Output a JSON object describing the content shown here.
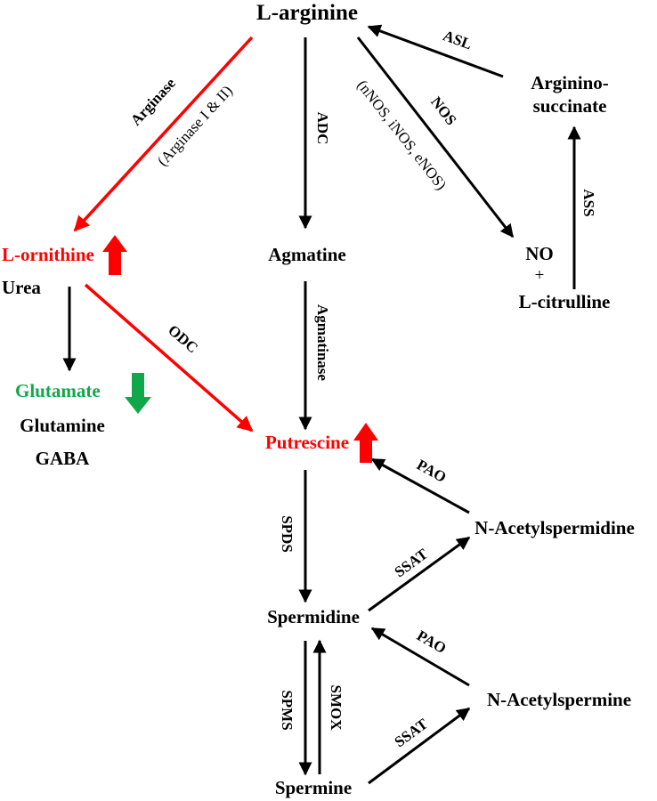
{
  "colors": {
    "black": "#000000",
    "red": "#ff0000",
    "green": "#11a84b"
  },
  "nodes": {
    "l_arginine": "L-arginine",
    "argininosuccinate_1": "Arginino-",
    "argininosuccinate_2": "succinate",
    "l_ornithine": "L-ornithine",
    "urea": "Urea",
    "agmatine": "Agmatine",
    "no": "NO",
    "plus": "+",
    "l_citrulline": "L-citrulline",
    "glutamate": "Glutamate",
    "glutamine": "Glutamine",
    "gaba": "GABA",
    "putrescine": "Putrescine",
    "n_acetylspermidine": "N-Acetylspermidine",
    "spermidine": "Spermidine",
    "n_acetylspermine": "N-Acetylspermine",
    "spermine": "Spermine"
  },
  "enzymes": {
    "asl": "ASL",
    "arginase": "Arginase",
    "arginase_isoforms": "(Arginase I & II)",
    "adc": "ADC",
    "nos": "NOS",
    "nos_isoforms": "(nNOS, iNOS, eNOS)",
    "ass": "ASS",
    "odc": "ODC",
    "agmatinase": "Agmatinase",
    "pao_1": "PAO",
    "spds": "SPDS",
    "ssat_1": "SSAT",
    "pao_2": "PAO",
    "spms": "SPMS",
    "smox": "SMOX",
    "ssat_2": "SSAT"
  },
  "indicators": {
    "l_ornithine": "up-arrow",
    "glutamate": "down-arrow",
    "putrescine": "up-arrow"
  }
}
